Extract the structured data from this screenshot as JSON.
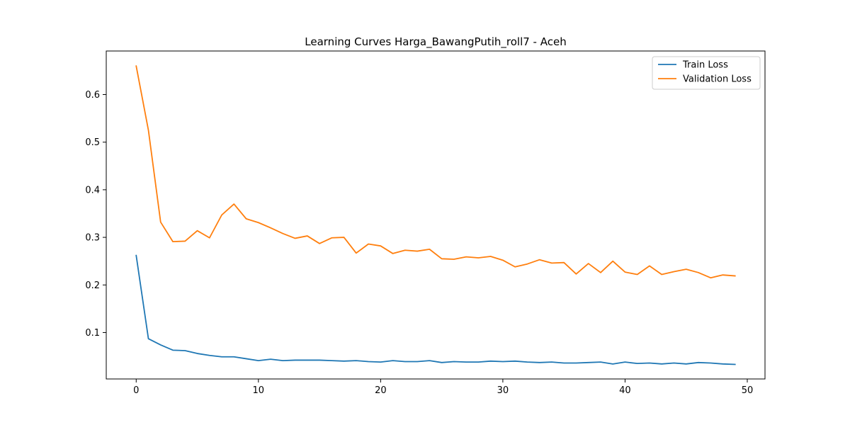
{
  "chart_data": {
    "type": "line",
    "title": "Learning Curves Harga_BawangPutih_roll7 - Aceh",
    "xlabel": "",
    "ylabel": "",
    "xlim": [
      -2.45,
      51.45
    ],
    "ylim": [
      0.0025,
      0.6915
    ],
    "x_ticks": [
      0,
      10,
      20,
      30,
      40,
      50
    ],
    "y_ticks": [
      0.1,
      0.2,
      0.3,
      0.4,
      0.5,
      0.6
    ],
    "grid": false,
    "legend_position": "top-right",
    "x": [
      0,
      1,
      2,
      3,
      4,
      5,
      6,
      7,
      8,
      9,
      10,
      11,
      12,
      13,
      14,
      15,
      16,
      17,
      18,
      19,
      20,
      21,
      22,
      23,
      24,
      25,
      26,
      27,
      28,
      29,
      30,
      31,
      32,
      33,
      34,
      35,
      36,
      37,
      38,
      39,
      40,
      41,
      42,
      43,
      44,
      45,
      46,
      47,
      48,
      49
    ],
    "series": [
      {
        "name": "Train Loss",
        "color": "#1f77b4",
        "values": [
          0.262,
          0.087,
          0.074,
          0.063,
          0.062,
          0.056,
          0.052,
          0.049,
          0.049,
          0.045,
          0.041,
          0.044,
          0.041,
          0.042,
          0.042,
          0.042,
          0.041,
          0.04,
          0.041,
          0.039,
          0.038,
          0.041,
          0.039,
          0.039,
          0.041,
          0.037,
          0.039,
          0.038,
          0.038,
          0.04,
          0.039,
          0.04,
          0.038,
          0.037,
          0.038,
          0.036,
          0.036,
          0.037,
          0.038,
          0.034,
          0.038,
          0.035,
          0.036,
          0.034,
          0.036,
          0.034,
          0.037,
          0.036,
          0.034,
          0.033
        ]
      },
      {
        "name": "Validation Loss",
        "color": "#ff7f0e",
        "values": [
          0.66,
          0.525,
          0.332,
          0.291,
          0.292,
          0.314,
          0.299,
          0.347,
          0.37,
          0.339,
          0.331,
          0.32,
          0.308,
          0.298,
          0.303,
          0.287,
          0.299,
          0.3,
          0.267,
          0.286,
          0.282,
          0.266,
          0.273,
          0.271,
          0.275,
          0.255,
          0.254,
          0.259,
          0.257,
          0.26,
          0.252,
          0.238,
          0.244,
          0.253,
          0.246,
          0.247,
          0.223,
          0.245,
          0.226,
          0.25,
          0.227,
          0.222,
          0.24,
          0.222,
          0.228,
          0.233,
          0.226,
          0.215,
          0.221,
          0.219
        ]
      }
    ]
  }
}
